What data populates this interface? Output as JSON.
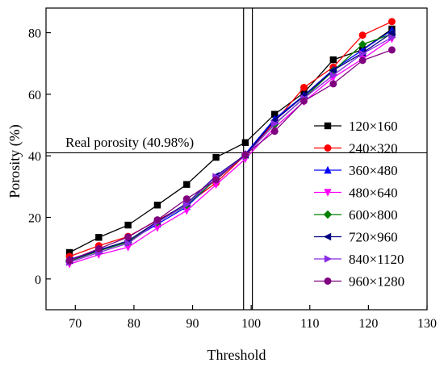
{
  "chart_data": {
    "type": "line",
    "xlabel": "Threshold",
    "ylabel": "Porosity (%)",
    "xlim": [
      65,
      130
    ],
    "ylim": [
      -10,
      88
    ],
    "x_ticks": [
      70,
      80,
      90,
      100,
      110,
      120,
      130
    ],
    "y_ticks": [
      0,
      20,
      40,
      60,
      80
    ],
    "grid": false,
    "legend_position": "right",
    "annotation": {
      "text": "Real porosity (40.98%)",
      "hline_y": 40.98,
      "vlines_x": [
        98.7,
        100.2
      ]
    },
    "x": [
      69,
      74,
      79,
      84,
      89,
      94,
      99,
      104,
      109,
      114,
      119,
      124
    ],
    "series": [
      {
        "name": "120×160",
        "color": "#000000",
        "marker": "square",
        "values": [
          8.6,
          13.5,
          17.5,
          24.0,
          30.7,
          39.5,
          44.3,
          53.5,
          60.5,
          71.2,
          74.5,
          81.2
        ]
      },
      {
        "name": "240×320",
        "color": "#ff0000",
        "marker": "circle",
        "values": [
          7.3,
          10.8,
          13.8,
          19.0,
          24.3,
          31.2,
          40.3,
          51.0,
          62.2,
          68.8,
          79.2,
          83.6
        ]
      },
      {
        "name": "360×480",
        "color": "#0000ff",
        "marker": "triangle-up",
        "values": [
          6.3,
          9.5,
          12.2,
          17.8,
          23.5,
          32.5,
          40.6,
          52.0,
          59.6,
          68.0,
          74.4,
          80.8
        ]
      },
      {
        "name": "480×640",
        "color": "#ff00ff",
        "marker": "triangle-down",
        "values": [
          4.8,
          7.9,
          10.3,
          16.6,
          22.2,
          30.6,
          39.0,
          49.2,
          57.6,
          65.4,
          71.5,
          78.0
        ]
      },
      {
        "name": "600×800",
        "color": "#008000",
        "marker": "diamond",
        "values": [
          5.8,
          9.1,
          12.0,
          18.4,
          24.0,
          32.4,
          40.2,
          50.2,
          58.8,
          67.6,
          76.2,
          79.5
        ]
      },
      {
        "name": "720×960",
        "color": "#000080",
        "marker": "triangle-left",
        "values": [
          6.0,
          9.3,
          12.4,
          18.7,
          24.5,
          33.5,
          40.3,
          51.5,
          59.4,
          67.8,
          73.4,
          79.9
        ]
      },
      {
        "name": "840×1120",
        "color": "#8a2be2",
        "marker": "triangle-right",
        "values": [
          5.4,
          8.6,
          11.6,
          18.4,
          24.2,
          33.2,
          40.0,
          50.4,
          58.7,
          66.2,
          73.2,
          78.4
        ]
      },
      {
        "name": "960×1280",
        "color": "#800080",
        "marker": "circle",
        "values": [
          6.0,
          9.8,
          13.6,
          19.2,
          26.0,
          32.2,
          40.4,
          48.0,
          57.8,
          63.4,
          71.0,
          74.4
        ]
      }
    ]
  }
}
